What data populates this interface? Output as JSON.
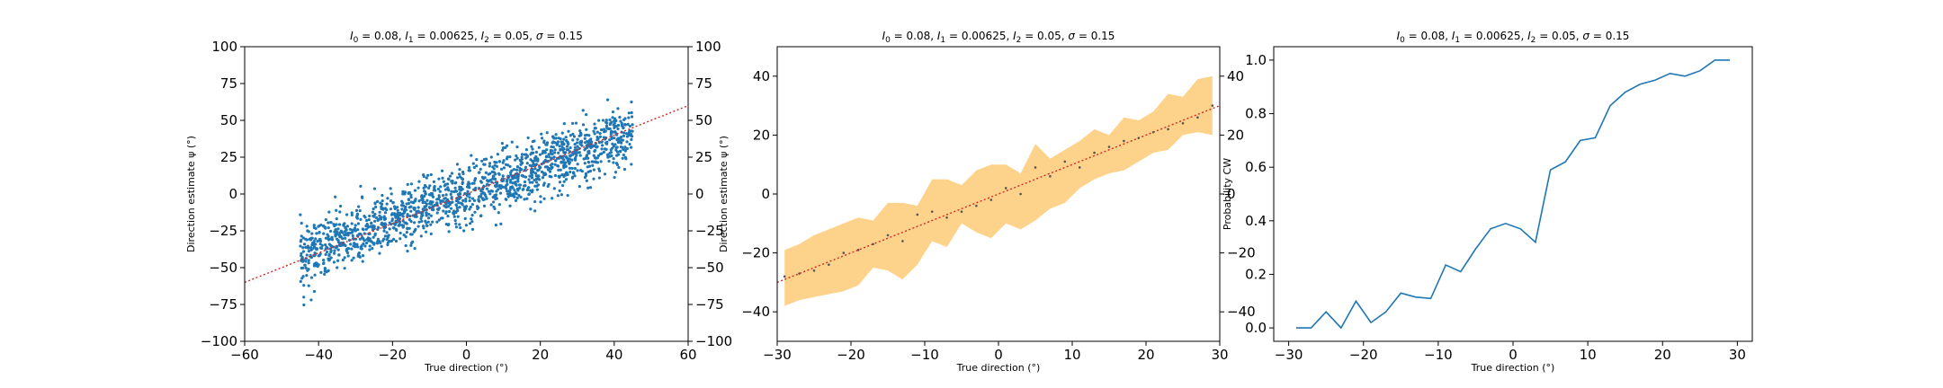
{
  "chart_data": [
    {
      "type": "scatter",
      "title": "I_0 = 0.08, I_1 = 0.00625, I_2 = 0.05, σ = 0.15",
      "title_parts": {
        "l0_symbol": "I",
        "l0_sub": "0",
        "l0_value": " = 0.08, ",
        "l1_symbol": "I",
        "l1_sub": "1",
        "l1_value": " = 0.00625, ",
        "l2_symbol": "I",
        "l2_sub": "2",
        "l2_value": " = 0.05, ",
        "sigma_symbol": "σ",
        "sigma_value": " = 0.15"
      },
      "xlabel": "True direction (°)",
      "ylabel": "Direction estimate ψ (°)",
      "xlim": [
        -60,
        60
      ],
      "ylim": [
        -100,
        100
      ],
      "xticks": [
        -60,
        -40,
        -20,
        0,
        20,
        40,
        60
      ],
      "yticks": [
        -100,
        -75,
        -50,
        -25,
        0,
        25,
        50,
        75,
        100
      ],
      "right_yticks": [
        -100,
        -75,
        -50,
        -25,
        0,
        25,
        50,
        75,
        100
      ],
      "grid": false,
      "point_color": "#1f77b4",
      "reference_line": {
        "style": "dotted",
        "color": "#d62728",
        "x": [
          -60,
          60
        ],
        "y": [
          -60,
          60
        ]
      },
      "sample_trend": {
        "x_range": [
          -45,
          45
        ],
        "slope": 0.92,
        "y_noise_sd": 10
      },
      "series": [
        {
          "x": [
            -44,
            -43,
            -42,
            -41,
            -40,
            -38,
            -36,
            -34,
            -32,
            -30,
            -28,
            -26,
            -24,
            -22,
            -20,
            -18,
            -16,
            -14,
            -12,
            -10,
            -8,
            -6,
            -4,
            -2,
            0,
            2,
            4,
            6,
            8,
            10,
            12,
            14,
            16,
            18,
            20,
            22,
            24,
            26,
            28,
            30,
            32,
            34,
            36,
            38,
            40,
            42,
            44,
            -44,
            -42,
            -40,
            -37,
            -33,
            -29,
            -25,
            -21,
            -17,
            -13,
            -9,
            -5,
            -1,
            3,
            7,
            11,
            15,
            19,
            23,
            27,
            31,
            35,
            39,
            43,
            -35,
            -27,
            -19,
            -11,
            -3,
            5,
            13,
            21,
            29,
            37,
            44,
            -44,
            -43,
            -41,
            -39,
            -31,
            -23,
            -15,
            -7,
            1,
            9,
            17,
            25,
            33,
            41
          ],
          "y": [
            -45,
            -52,
            -38,
            -40,
            -42,
            -30,
            -36,
            -34,
            -28,
            -25,
            -30,
            -22,
            -24,
            -20,
            -17,
            -19,
            -15,
            -10,
            -14,
            -9,
            -6,
            -8,
            -3,
            -2,
            0,
            3,
            2,
            6,
            8,
            9,
            13,
            11,
            16,
            15,
            18,
            22,
            20,
            25,
            26,
            28,
            30,
            32,
            35,
            34,
            38,
            42,
            40,
            -62,
            -30,
            -48,
            -44,
            -20,
            -40,
            -15,
            -28,
            -8,
            -22,
            -2,
            -15,
            8,
            -10,
            15,
            2,
            25,
            8,
            32,
            14,
            40,
            22,
            48,
            30,
            -50,
            -18,
            -32,
            0,
            -18,
            20,
            -2,
            35,
            14,
            50,
            55,
            -70,
            -25,
            -55,
            -35,
            -45,
            -10,
            -35,
            5,
            -20,
            22,
            0,
            38,
            15,
            58
          ]
        }
      ]
    },
    {
      "type": "line",
      "title": "I_0 = 0.08, I_1 = 0.00625, I_2 = 0.05, σ = 0.15",
      "title_parts": {
        "l0_symbol": "I",
        "l0_sub": "0",
        "l0_value": " = 0.08, ",
        "l1_symbol": "I",
        "l1_sub": "1",
        "l1_value": " = 0.00625, ",
        "l2_symbol": "I",
        "l2_sub": "2",
        "l2_value": " = 0.05, ",
        "sigma_symbol": "σ",
        "sigma_value": " = 0.15"
      },
      "xlabel": "True direction (°)",
      "ylabel": "Direction estimate ψ (°)",
      "xlim": [
        -30,
        30
      ],
      "ylim": [
        -50,
        50
      ],
      "xticks": [
        -30,
        -20,
        -10,
        0,
        10,
        20,
        30
      ],
      "yticks": [
        -40,
        -20,
        0,
        20,
        40
      ],
      "right_yticks": [
        -40,
        -20,
        0,
        20,
        40
      ],
      "grid": false,
      "band_color": "#fdd28a",
      "point_color": "#555555",
      "reference_line": {
        "style": "dotted",
        "color": "#d62728",
        "x": [
          -30,
          30
        ],
        "y": [
          -30,
          30
        ]
      },
      "x": [
        -29,
        -27,
        -25,
        -23,
        -21,
        -19,
        -17,
        -15,
        -13,
        -11,
        -9,
        -7,
        -5,
        -3,
        -1,
        1,
        3,
        5,
        7,
        9,
        11,
        13,
        15,
        17,
        19,
        21,
        23,
        25,
        27,
        29
      ],
      "mean": [
        -28,
        -27,
        -26,
        -24,
        -20,
        -19,
        -17,
        -14,
        -16,
        -7,
        -6,
        -8,
        -6,
        -4,
        -2,
        2,
        0,
        9,
        6,
        11,
        9,
        14,
        16,
        18,
        19,
        21,
        22,
        24,
        26,
        30
      ],
      "upper": [
        -19,
        -17,
        -14,
        -12,
        -10,
        -8,
        -9,
        -3,
        -3,
        -4,
        5,
        5,
        3,
        8,
        10,
        10,
        7,
        17,
        12,
        15,
        18,
        22,
        20,
        26,
        25,
        28,
        34,
        33,
        39,
        40
      ],
      "lower": [
        -38,
        -36,
        -35,
        -34,
        -33,
        -31,
        -25,
        -26,
        -29,
        -24,
        -16,
        -18,
        -10,
        -13,
        -15,
        -10,
        -12,
        -9,
        -5,
        -3,
        2,
        5,
        7,
        8,
        11,
        14,
        15,
        20,
        21,
        20
      ]
    },
    {
      "type": "line",
      "title": "I_0 = 0.08, I_1 = 0.00625, I_2 = 0.05, σ = 0.15",
      "title_parts": {
        "l0_symbol": "I",
        "l0_sub": "0",
        "l0_value": " = 0.08, ",
        "l1_symbol": "I",
        "l1_sub": "1",
        "l1_value": " = 0.00625, ",
        "l2_symbol": "I",
        "l2_sub": "2",
        "l2_value": " = 0.05, ",
        "sigma_symbol": "σ",
        "sigma_value": " = 0.15"
      },
      "xlabel": "True direction (°)",
      "ylabel": "Probability CW",
      "xlim": [
        -32,
        32
      ],
      "ylim": [
        -0.05,
        1.05
      ],
      "xticks": [
        -30,
        -20,
        -10,
        0,
        10,
        20,
        30
      ],
      "yticks": [
        0.0,
        0.2,
        0.4,
        0.6,
        0.8,
        1.0
      ],
      "ytick_labels": [
        "0.0",
        "0.2",
        "0.4",
        "0.6",
        "0.8",
        "1.0"
      ],
      "grid": false,
      "line_color": "#1f77b4",
      "x": [
        -29,
        -27,
        -25,
        -23,
        -21,
        -19,
        -17,
        -15,
        -13,
        -11,
        -9,
        -7,
        -5,
        -3,
        -1,
        1,
        3,
        5,
        7,
        9,
        11,
        13,
        15,
        17,
        19,
        21,
        23,
        25,
        27,
        29
      ],
      "y": [
        0.0,
        0.0,
        0.06,
        0.0,
        0.1,
        0.02,
        0.06,
        0.13,
        0.115,
        0.11,
        0.235,
        0.21,
        0.295,
        0.37,
        0.39,
        0.37,
        0.32,
        0.59,
        0.62,
        0.7,
        0.71,
        0.83,
        0.88,
        0.91,
        0.925,
        0.95,
        0.94,
        0.96,
        1.0,
        1.0
      ]
    }
  ]
}
